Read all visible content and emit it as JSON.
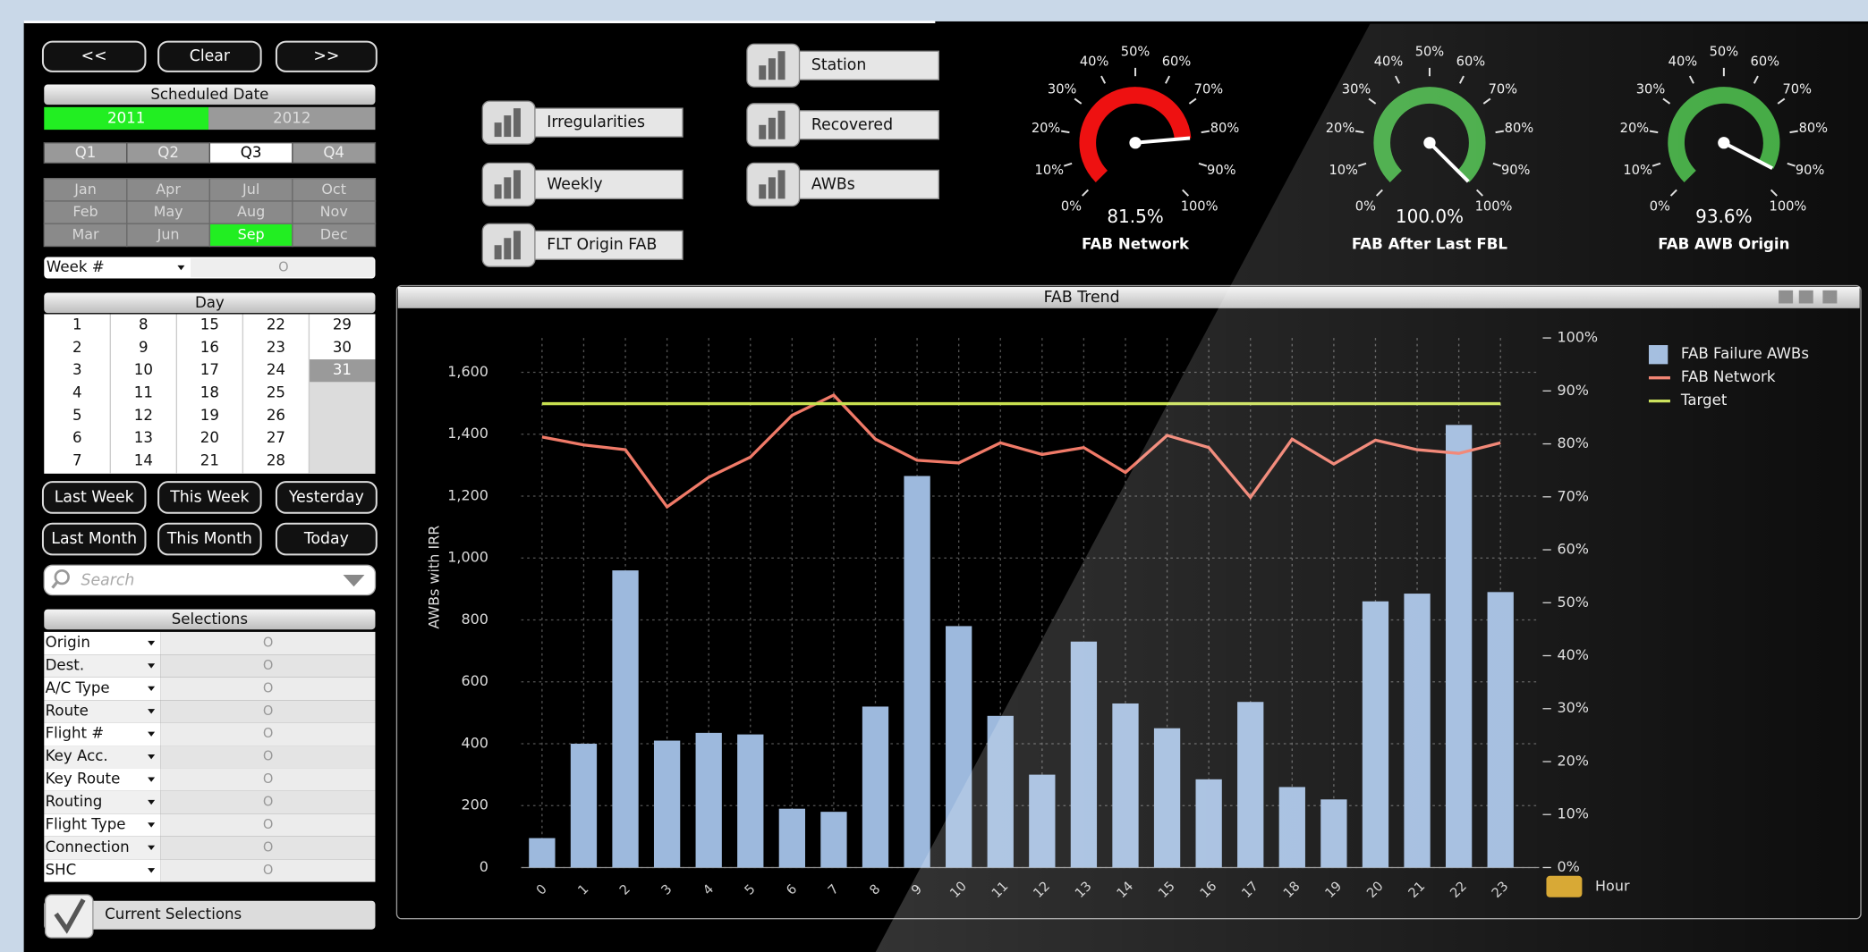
{
  "nav": [
    "<<",
    "Clear",
    ">>"
  ],
  "scheduled_date": {
    "title": "Scheduled Date",
    "years": [
      "2011",
      "2012"
    ],
    "selected": 0
  },
  "quarters": {
    "labels": [
      "Q1",
      "Q2",
      "Q3",
      "Q4"
    ],
    "selected": 2
  },
  "months": {
    "labels": [
      [
        "Jan",
        "Feb",
        "Mar"
      ],
      [
        "Apr",
        "May",
        "Jun"
      ],
      [
        "Jul",
        "Aug",
        "Sep"
      ],
      [
        "Oct",
        "Nov",
        "Dec"
      ]
    ],
    "selected": [
      2,
      2
    ]
  },
  "week": {
    "label": "Week #",
    "value": "O"
  },
  "day": {
    "title": "Day",
    "days": [
      1,
      2,
      3,
      4,
      5,
      6,
      7,
      8,
      9,
      10,
      11,
      12,
      13,
      14,
      15,
      16,
      17,
      18,
      19,
      20,
      21,
      22,
      23,
      24,
      25,
      26,
      27,
      28,
      29,
      30,
      31
    ],
    "selected": 30
  },
  "quick_buttons": [
    "Last Week",
    "This Week",
    "Yesterday",
    "Last Month",
    "This Month",
    "Today"
  ],
  "search": "Search",
  "selections": {
    "title": "Selections",
    "fields": [
      "Origin",
      "Dest.",
      "A/C Type",
      "Route",
      "Flight #",
      "Key Acc.",
      "Key Route",
      "Routing",
      "Flight Type",
      "Connection",
      "SHC"
    ],
    "value": "O"
  },
  "current_selections": "Current Selections",
  "buttons": [
    "Irregularities",
    "Weekly",
    "FLT Origin FAB",
    "Station",
    "Recovered",
    "AWBs"
  ],
  "gauge_ticks": [
    {
      "value": 0,
      "label": "0%"
    },
    {
      "value": 10,
      "label": "10%"
    },
    {
      "value": 20,
      "label": "20%"
    },
    {
      "value": 30,
      "label": "30%"
    },
    {
      "value": 40,
      "label": "40%"
    },
    {
      "value": 50,
      "label": "50%"
    },
    {
      "value": 60,
      "label": "60%"
    },
    {
      "value": 70,
      "label": "70%"
    },
    {
      "value": 80,
      "label": "80%"
    },
    {
      "value": 90,
      "label": "90%"
    },
    {
      "value": 100,
      "label": "100%"
    }
  ],
  "gauges": [
    {
      "title": "FAB Network",
      "value": 81.5,
      "value_label": "81.5%",
      "color": "#ee1111"
    },
    {
      "title": "FAB After Last FBL",
      "value": 100.0,
      "value_label": "100.0%",
      "color": "#3aa63a"
    },
    {
      "title": "FAB AWB Origin",
      "value": 93.6,
      "value_label": "93.6%",
      "color": "#3aa63a"
    }
  ],
  "chart_data": {
    "type": "bar",
    "title": "FAB Trend",
    "y_label": "AWBs with IRR",
    "x_label": "Hour",
    "categories": [
      "0",
      "1",
      "2",
      "3",
      "4",
      "5",
      "6",
      "7",
      "8",
      "9",
      "10",
      "11",
      "12",
      "13",
      "14",
      "15",
      "16",
      "17",
      "18",
      "19",
      "20",
      "21",
      "22",
      "23"
    ],
    "series": [
      {
        "name": "FAB Failure AWBs",
        "color": "#9db9dd",
        "type": "bar",
        "values": [
          95,
          400,
          960,
          410,
          435,
          430,
          190,
          180,
          520,
          1265,
          780,
          490,
          300,
          730,
          530,
          450,
          285,
          535,
          260,
          220,
          860,
          885,
          1430,
          890
        ]
      },
      {
        "name": "FAB Network",
        "color": "#f07a68",
        "type": "line",
        "axis": "y2",
        "values": [
          81.3,
          79.8,
          78.9,
          68.1,
          73.7,
          77.5,
          85.4,
          89.2,
          80.9,
          76.9,
          76.4,
          80.2,
          78.0,
          79.3,
          74.6,
          81.6,
          79.3,
          69.9,
          80.9,
          76.2,
          80.7,
          78.9,
          78.2,
          80.2
        ]
      },
      {
        "name": "Target",
        "color": "#c8e050",
        "type": "line",
        "axis": "y2",
        "values": [
          87.6,
          87.6,
          87.6,
          87.6,
          87.6,
          87.6,
          87.6,
          87.6,
          87.6,
          87.6,
          87.6,
          87.6,
          87.6,
          87.6,
          87.6,
          87.6,
          87.6,
          87.6,
          87.6,
          87.6,
          87.6,
          87.6,
          87.6,
          87.6
        ]
      }
    ],
    "ylim": [
      0,
      1711
    ],
    "yticks": [
      0,
      200,
      400,
      600,
      800,
      {
        "value": 1000,
        "label": "1,000"
      },
      {
        "value": 1200,
        "label": "1,200"
      },
      {
        "value": 1400,
        "label": "1,400"
      },
      {
        "value": 1600,
        "label": "1,600"
      }
    ],
    "y2lim": [
      0,
      100
    ],
    "y2ticks": [
      {
        "value": 0,
        "label": "0%"
      },
      {
        "value": 10,
        "label": "10%"
      },
      {
        "value": 20,
        "label": "20%"
      },
      {
        "value": 30,
        "label": "30%"
      },
      {
        "value": 40,
        "label": "40%"
      },
      {
        "value": 50,
        "label": "50%"
      },
      {
        "value": 60,
        "label": "60%"
      },
      {
        "value": 70,
        "label": "70%"
      },
      {
        "value": 80,
        "label": "80%"
      },
      {
        "value": 90,
        "label": "90%"
      },
      {
        "value": 100,
        "label": "100%"
      }
    ],
    "grid": true,
    "legend": "right"
  }
}
